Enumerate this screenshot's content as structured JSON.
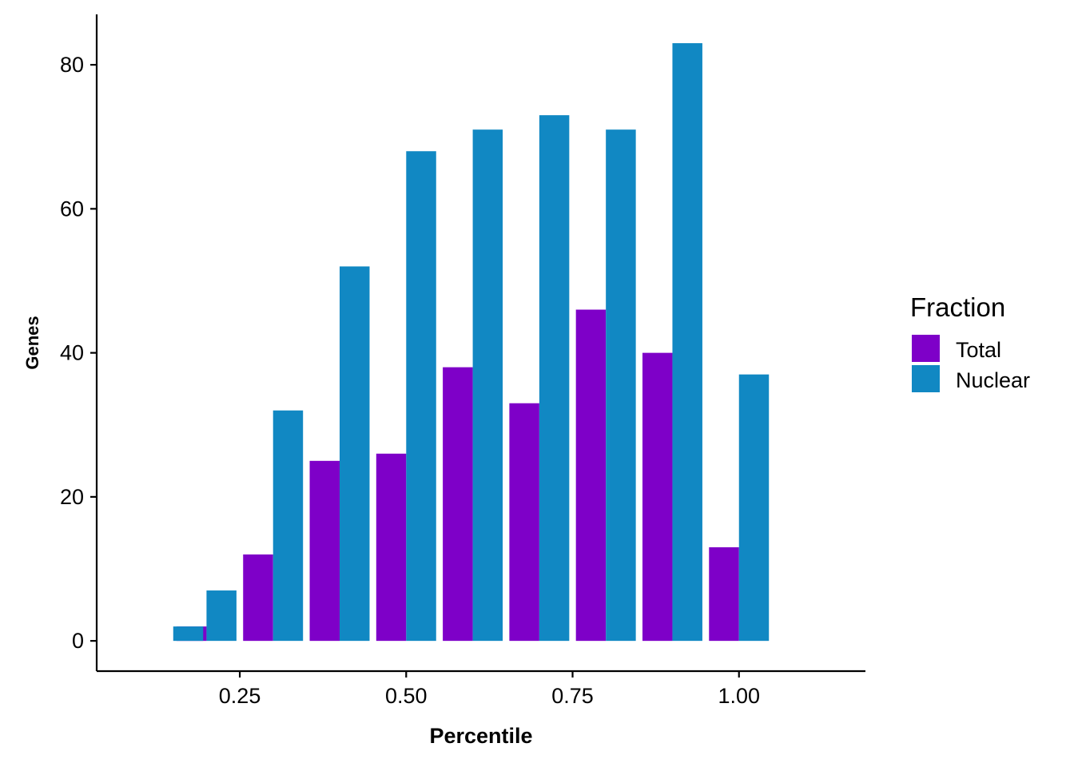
{
  "chart_data": {
    "type": "bar",
    "title": "",
    "xlabel": "Percentile",
    "ylabel": "Genes",
    "xlim": [
      0.035,
      1.19
    ],
    "ylim": [
      -4.2,
      87
    ],
    "x_ticks": [
      0.25,
      0.5,
      0.75,
      1.0
    ],
    "x_tick_labels": [
      "0.25",
      "0.50",
      "0.75",
      "1.00"
    ],
    "y_ticks": [
      0,
      20,
      40,
      60,
      80
    ],
    "y_tick_labels": [
      "0",
      "20",
      "40",
      "60",
      "80"
    ],
    "grid": false,
    "legend": {
      "title": "Fraction",
      "position": "right"
    },
    "bin_width": 0.1,
    "bar_gap": 0.01,
    "x": [
      0.15,
      0.25,
      0.35,
      0.45,
      0.55,
      0.65,
      0.75,
      0.85,
      0.95
    ],
    "series": [
      {
        "name": "Total",
        "color": "#7E00C8",
        "values": [
          0,
          2,
          12,
          25,
          26,
          38,
          33,
          46,
          40,
          13
        ],
        "x": [
          0.15,
          0.2,
          0.3,
          0.4,
          0.5,
          0.6,
          0.7,
          0.8,
          0.9,
          1.0
        ]
      },
      {
        "name": "Nuclear",
        "color": "#1188C3",
        "values": [
          2,
          7,
          32,
          52,
          68,
          71,
          73,
          71,
          83,
          37
        ],
        "x": [
          0.15,
          0.2,
          0.3,
          0.4,
          0.5,
          0.6,
          0.7,
          0.8,
          0.9,
          1.0
        ]
      }
    ]
  }
}
